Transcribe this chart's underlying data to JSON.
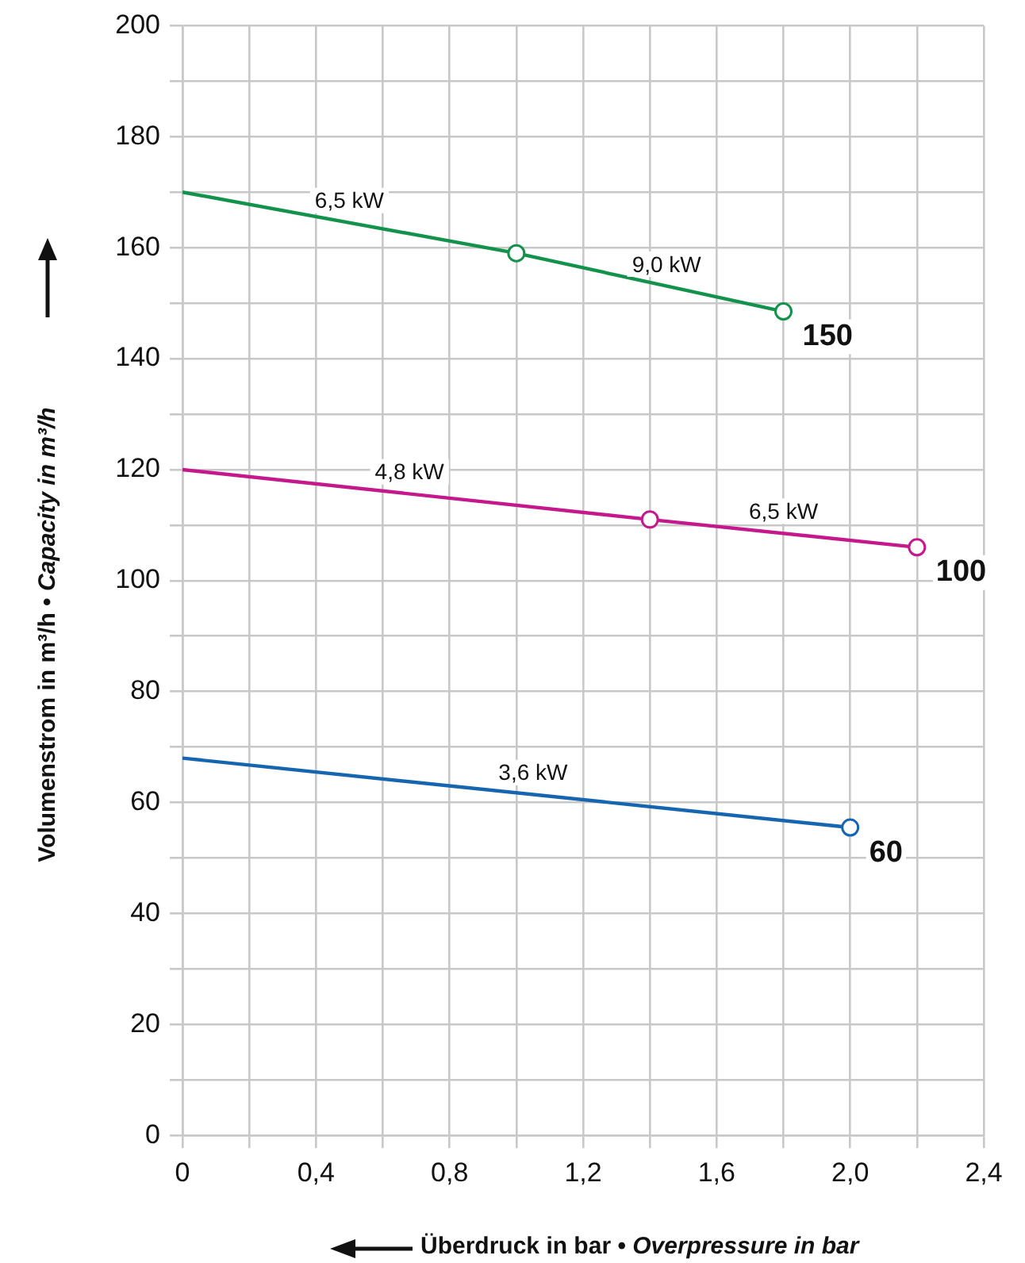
{
  "chart_data": {
    "type": "line",
    "xlabel": "Überdruck in bar • Overpressure in bar",
    "ylabel": "Volumenstrom in m³/h • Capacity in m³/h",
    "xlim": [
      0,
      2.4
    ],
    "xticks": [
      0,
      {
        "value": 0.2,
        "label": null
      },
      {
        "value": 0.4,
        "label": "0,4"
      },
      {
        "value": 0.6,
        "label": null
      },
      {
        "value": 0.8,
        "label": "0,8"
      },
      {
        "value": 1.0,
        "label": null
      },
      {
        "value": 1.2,
        "label": "1,2"
      },
      {
        "value": 1.4,
        "label": null
      },
      {
        "value": 1.6,
        "label": "1,6"
      },
      {
        "value": 1.8,
        "label": null
      },
      {
        "value": 2.0,
        "label": "2,0"
      },
      {
        "value": 2.2,
        "label": null
      },
      {
        "value": 2.4,
        "label": "2,4"
      }
    ],
    "ylim": [
      0,
      200
    ],
    "yticks": [
      0,
      {
        "value": 10,
        "label": null
      },
      20,
      {
        "value": 30,
        "label": null
      },
      40,
      {
        "value": 50,
        "label": null
      },
      60,
      {
        "value": 70,
        "label": null
      },
      80,
      {
        "value": 90,
        "label": null
      },
      100,
      {
        "value": 110,
        "label": null
      },
      120,
      {
        "value": 130,
        "label": null
      },
      140,
      {
        "value": 150,
        "label": null
      },
      160,
      {
        "value": 170,
        "label": null
      },
      180,
      {
        "value": 190,
        "label": null
      },
      200
    ],
    "grid": true,
    "legend": false,
    "marker": "circle",
    "line_style": "solid",
    "series": [
      {
        "name": "150",
        "color": "#12924a",
        "x": [
          0,
          1.0,
          1.8
        ],
        "values": [
          170,
          159,
          148.5
        ]
      },
      {
        "name": "100",
        "color": "#c4188c",
        "x": [
          0,
          1.4,
          2.2
        ],
        "values": [
          120,
          111,
          106
        ]
      },
      {
        "name": "60",
        "color": "#1565b0",
        "x": [
          0,
          2.0
        ],
        "values": [
          68,
          55.5
        ]
      }
    ],
    "annotations": [
      {
        "text": "6,5 kW",
        "x": 0.5,
        "y": 164.5
      },
      {
        "text": "9,0 kW",
        "x": 1.45,
        "y": 153
      },
      {
        "text": "4,8 kW",
        "x": 0.68,
        "y": 115.6
      },
      {
        "text": "6,5 kW",
        "x": 1.8,
        "y": 108.5
      },
      {
        "text": "3,6 kW",
        "x": 1.05,
        "y": 61.4
      }
    ]
  }
}
